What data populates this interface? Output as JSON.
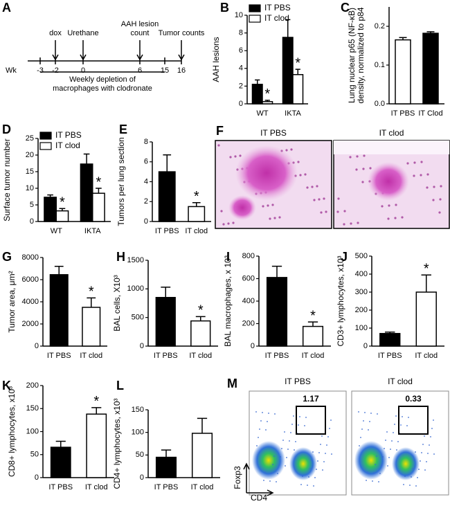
{
  "timeline": {
    "label": "A",
    "week_label": "Wk",
    "ticks": [
      -3,
      -2,
      0,
      6,
      15,
      16
    ],
    "events": [
      [
        "dox"
      ],
      [
        "Urethane"
      ],
      [
        "AAH lesion",
        "count"
      ],
      [
        "Tumor counts"
      ]
    ],
    "note": [
      "Weekly depletion of",
      "macrophages with clodronate"
    ]
  },
  "histology": {
    "label": "F",
    "titles": [
      "IT PBS",
      "IT clod"
    ]
  },
  "flow": {
    "label": "M",
    "panels": [
      {
        "title": "IT PBS",
        "gate": "1.17"
      },
      {
        "title": "IT clod",
        "gate": "0.33"
      }
    ],
    "y_label": "Foxp3",
    "x_label": "CD4"
  },
  "chart_data": [
    {
      "type": "bar",
      "label": "B",
      "ylabel": "AAH lesions",
      "categories": [
        "WT",
        "IKTA"
      ],
      "legend": "top",
      "series": [
        {
          "name": "IT PBS",
          "color": "#000000",
          "values": [
            2.2,
            7.5
          ],
          "errors": [
            0.5,
            2.0
          ],
          "markers": [
            null,
            null
          ]
        },
        {
          "name": "IT clod",
          "color": "#ffffff",
          "values": [
            0.25,
            3.3
          ],
          "errors": [
            0.15,
            0.6
          ],
          "markers": [
            "*",
            "*"
          ]
        }
      ],
      "ylim": [
        0,
        10
      ],
      "yticks": [
        0,
        2,
        4,
        6,
        8,
        10
      ]
    },
    {
      "type": "bar",
      "label": "C",
      "ylabel": [
        "Lung nuclear p65 (NF-κB)",
        "density, normalized to p84"
      ],
      "categories": [
        "IT PBS",
        "IT Clod"
      ],
      "values": [
        0.165,
        0.182
      ],
      "errors": [
        0.006,
        0.004
      ],
      "colors": [
        "#ffffff",
        "#000000"
      ],
      "markers": [
        null,
        null
      ],
      "ylim": [
        0,
        0.25
      ],
      "yticks": [
        {
          "value": 0,
          "label": "0.0"
        },
        0.1,
        0.2
      ]
    },
    {
      "type": "bar",
      "label": "D",
      "ylabel": "Surface tumor number",
      "categories": [
        "WT",
        "IKTA"
      ],
      "legend": "top-left",
      "series": [
        {
          "name": "IT PBS",
          "color": "#000000",
          "values": [
            7.3,
            17.3
          ],
          "errors": [
            0.7,
            3.0
          ],
          "markers": [
            null,
            null
          ]
        },
        {
          "name": "IT clod",
          "color": "#ffffff",
          "values": [
            3.2,
            8.5
          ],
          "errors": [
            0.7,
            1.5
          ],
          "markers": [
            "*",
            "*"
          ]
        }
      ],
      "ylim": [
        0,
        25
      ],
      "yticks": [
        0,
        5,
        10,
        15,
        20,
        25
      ]
    },
    {
      "type": "bar",
      "label": "E",
      "ylabel": "Tumors per lung section",
      "categories": [
        "IT PBS",
        "IT clod"
      ],
      "values": [
        5.0,
        1.5
      ],
      "errors": [
        1.7,
        0.4
      ],
      "colors": [
        "#000000",
        "#ffffff"
      ],
      "markers": [
        null,
        "*"
      ],
      "ylim": [
        0,
        8
      ],
      "yticks": [
        0,
        2,
        4,
        6,
        8
      ]
    },
    {
      "type": "bar",
      "label": "G",
      "ylabel": "Tumor area, μm²",
      "categories": [
        "IT PBS",
        "IT clod"
      ],
      "values": [
        6450,
        3500
      ],
      "errors": [
        750,
        850
      ],
      "colors": [
        "#000000",
        "#ffffff"
      ],
      "markers": [
        null,
        "*"
      ],
      "ylim": [
        0,
        8000
      ],
      "yticks": [
        0,
        2000,
        4000,
        6000,
        8000
      ]
    },
    {
      "type": "bar",
      "label": "H",
      "ylabel": "BAL cells, X10³",
      "categories": [
        "IT PBS",
        "IT clod"
      ],
      "values": [
        850,
        440
      ],
      "errors": [
        180,
        75
      ],
      "colors": [
        "#000000",
        "#ffffff"
      ],
      "markers": [
        null,
        "*"
      ],
      "ylim": [
        0,
        1500
      ],
      "yticks": [
        0,
        500,
        1000,
        1500
      ]
    },
    {
      "type": "bar",
      "label": "I",
      "ylabel": "BAL macrophages, x 10³",
      "categories": [
        "IT PBS",
        "IT clod"
      ],
      "values": [
        610,
        175
      ],
      "errors": [
        100,
        40
      ],
      "colors": [
        "#000000",
        "#ffffff"
      ],
      "markers": [
        null,
        "*"
      ],
      "ylim": [
        0,
        800
      ],
      "yticks": [
        0,
        200,
        400,
        600,
        800
      ]
    },
    {
      "type": "bar",
      "label": "J",
      "ylabel": "CD3+ lymphocytes, x10³",
      "categories": [
        "IT PBS",
        "IT clod"
      ],
      "values": [
        70,
        300
      ],
      "errors": [
        8,
        95
      ],
      "colors": [
        "#000000",
        "#ffffff"
      ],
      "markers": [
        null,
        "*"
      ],
      "ylim": [
        0,
        500
      ],
      "yticks": [
        0,
        100,
        200,
        300,
        400,
        500
      ]
    },
    {
      "type": "bar",
      "label": "K",
      "ylabel": "CD8+ lymphocytes, x10³",
      "categories": [
        "IT PBS",
        "IT clod"
      ],
      "values": [
        66,
        138
      ],
      "errors": [
        13,
        14
      ],
      "colors": [
        "#000000",
        "#ffffff"
      ],
      "markers": [
        null,
        "*"
      ],
      "ylim": [
        0,
        200
      ],
      "yticks": [
        0,
        50,
        100,
        150,
        200
      ]
    },
    {
      "type": "bar",
      "label": "L",
      "ylabel": "CD4+ lymphocytes, x10³",
      "categories": [
        "IT PBS",
        "IT clod"
      ],
      "values": [
        45,
        98
      ],
      "errors": [
        16,
        33
      ],
      "colors": [
        "#000000",
        "#ffffff"
      ],
      "markers": [
        null,
        null
      ],
      "ylim": [
        0,
        150
      ],
      "yticks": [
        0,
        50,
        100,
        150
      ]
    }
  ]
}
